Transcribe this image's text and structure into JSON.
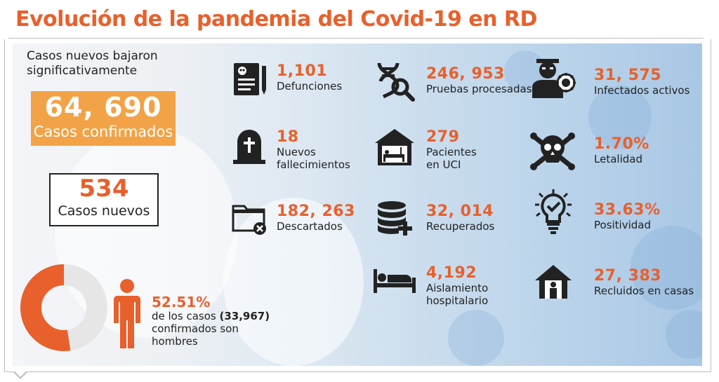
{
  "title": "Evolución de la pandemia del Covid-19 en RD",
  "intro": {
    "line1": "Casos nuevos bajaron",
    "line2": "significativamente"
  },
  "confirmed": {
    "value": "64, 690",
    "label": "Casos confirmados"
  },
  "new_cases": {
    "value": "534",
    "label": "Casos nuevos"
  },
  "male_share": {
    "percent": "52.51%",
    "fraction": 0.5251,
    "text1": "de los casos",
    "count": "(33,967)",
    "text2": "confirmados son",
    "text3": "hombres"
  },
  "stats": {
    "defunciones": {
      "value": "1,101",
      "label": "Defunciones",
      "icon": "death-certificate-icon"
    },
    "pruebas": {
      "value": "246, 953",
      "label": "Pruebas procesadas",
      "icon": "dna-search-icon"
    },
    "activos": {
      "value": "31, 575",
      "label": "Infectados activos",
      "icon": "sick-person-virus-icon"
    },
    "nuevos_fallecimientos": {
      "value": "18",
      "label1": "Nuevos",
      "label2": "fallecimientos",
      "icon": "tombstone-icon"
    },
    "uci": {
      "value": "279",
      "label1": "Pacientes",
      "label2": "en UCI",
      "icon": "hospital-icu-icon"
    },
    "letalidad": {
      "value": "1.70%",
      "label": "Letalidad",
      "icon": "skull-crossbones-icon"
    },
    "descartados": {
      "value": "182, 263",
      "label": "Descartados",
      "icon": "folder-remove-icon"
    },
    "recuperados": {
      "value": "32, 014",
      "label": "Recuperados",
      "icon": "database-plus-icon"
    },
    "positividad": {
      "value": "33.63%",
      "label": "Positividad",
      "icon": "lightbulb-check-icon"
    },
    "aislamiento": {
      "value": "4,192",
      "label1": "Aislamiento",
      "label2": "hospitalario",
      "icon": "hospital-bed-icon"
    },
    "recluidos": {
      "value": "27, 383",
      "label": "Recluidos en casas",
      "icon": "house-person-icon"
    }
  },
  "colors": {
    "accent": "#e8602c",
    "confirmed_box": "#f2a347",
    "donut_track": "#e6e6e6",
    "text": "#222222"
  }
}
